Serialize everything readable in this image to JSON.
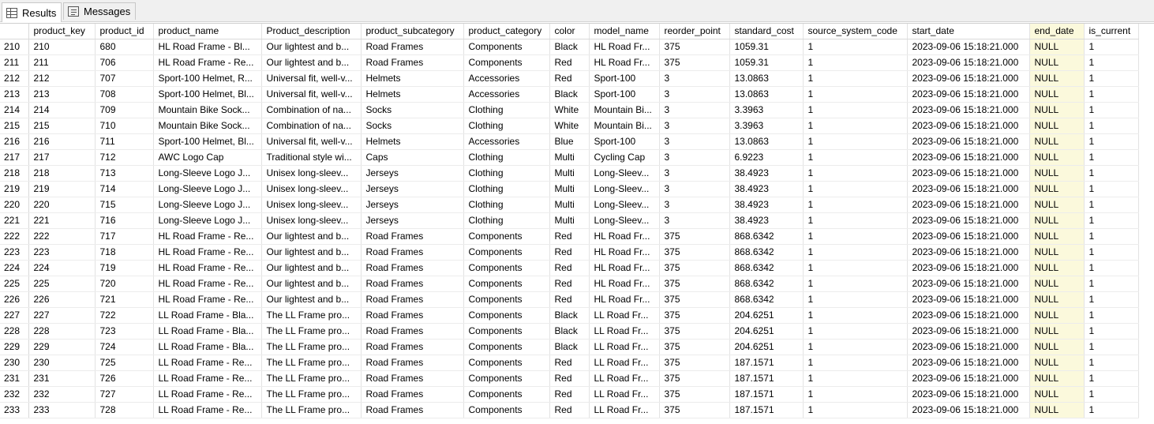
{
  "tabs": [
    {
      "label": "Results",
      "icon": "grid-icon"
    },
    {
      "label": "Messages",
      "icon": "messages-icon"
    }
  ],
  "columns": [
    "product_key",
    "product_id",
    "product_name",
    "Product_description",
    "product_subcategory",
    "product_category",
    "color",
    "model_name",
    "reorder_point",
    "standard_cost",
    "source_system_code",
    "start_date",
    "end_date",
    "is_current"
  ],
  "rows": [
    [
      "210",
      "210",
      "680",
      "HL Road Frame - Bl...",
      "Our lightest and b...",
      "Road Frames",
      "Components",
      "Black",
      "HL Road Fr...",
      "375",
      "1059.31",
      "1",
      "2023-09-06 15:18:21.000",
      "NULL",
      "1"
    ],
    [
      "211",
      "211",
      "706",
      "HL Road Frame - Re...",
      "Our lightest and b...",
      "Road Frames",
      "Components",
      "Red",
      "HL Road Fr...",
      "375",
      "1059.31",
      "1",
      "2023-09-06 15:18:21.000",
      "NULL",
      "1"
    ],
    [
      "212",
      "212",
      "707",
      "Sport-100 Helmet, R...",
      "Universal fit, well-v...",
      "Helmets",
      "Accessories",
      "Red",
      "Sport-100",
      "3",
      "13.0863",
      "1",
      "2023-09-06 15:18:21.000",
      "NULL",
      "1"
    ],
    [
      "213",
      "213",
      "708",
      "Sport-100 Helmet, Bl...",
      "Universal fit, well-v...",
      "Helmets",
      "Accessories",
      "Black",
      "Sport-100",
      "3",
      "13.0863",
      "1",
      "2023-09-06 15:18:21.000",
      "NULL",
      "1"
    ],
    [
      "214",
      "214",
      "709",
      "Mountain Bike Sock...",
      "Combination of na...",
      "Socks",
      "Clothing",
      "White",
      "Mountain Bi...",
      "3",
      "3.3963",
      "1",
      "2023-09-06 15:18:21.000",
      "NULL",
      "1"
    ],
    [
      "215",
      "215",
      "710",
      "Mountain Bike Sock...",
      "Combination of na...",
      "Socks",
      "Clothing",
      "White",
      "Mountain Bi...",
      "3",
      "3.3963",
      "1",
      "2023-09-06 15:18:21.000",
      "NULL",
      "1"
    ],
    [
      "216",
      "216",
      "711",
      "Sport-100 Helmet, Bl...",
      "Universal fit, well-v...",
      "Helmets",
      "Accessories",
      "Blue",
      "Sport-100",
      "3",
      "13.0863",
      "1",
      "2023-09-06 15:18:21.000",
      "NULL",
      "1"
    ],
    [
      "217",
      "217",
      "712",
      "AWC Logo Cap",
      "Traditional style wi...",
      "Caps",
      "Clothing",
      "Multi",
      "Cycling Cap",
      "3",
      "6.9223",
      "1",
      "2023-09-06 15:18:21.000",
      "NULL",
      "1"
    ],
    [
      "218",
      "218",
      "713",
      "Long-Sleeve Logo J...",
      "Unisex long-sleev...",
      "Jerseys",
      "Clothing",
      "Multi",
      "Long-Sleev...",
      "3",
      "38.4923",
      "1",
      "2023-09-06 15:18:21.000",
      "NULL",
      "1"
    ],
    [
      "219",
      "219",
      "714",
      "Long-Sleeve Logo J...",
      "Unisex long-sleev...",
      "Jerseys",
      "Clothing",
      "Multi",
      "Long-Sleev...",
      "3",
      "38.4923",
      "1",
      "2023-09-06 15:18:21.000",
      "NULL",
      "1"
    ],
    [
      "220",
      "220",
      "715",
      "Long-Sleeve Logo J...",
      "Unisex long-sleev...",
      "Jerseys",
      "Clothing",
      "Multi",
      "Long-Sleev...",
      "3",
      "38.4923",
      "1",
      "2023-09-06 15:18:21.000",
      "NULL",
      "1"
    ],
    [
      "221",
      "221",
      "716",
      "Long-Sleeve Logo J...",
      "Unisex long-sleev...",
      "Jerseys",
      "Clothing",
      "Multi",
      "Long-Sleev...",
      "3",
      "38.4923",
      "1",
      "2023-09-06 15:18:21.000",
      "NULL",
      "1"
    ],
    [
      "222",
      "222",
      "717",
      "HL Road Frame - Re...",
      "Our lightest and b...",
      "Road Frames",
      "Components",
      "Red",
      "HL Road Fr...",
      "375",
      "868.6342",
      "1",
      "2023-09-06 15:18:21.000",
      "NULL",
      "1"
    ],
    [
      "223",
      "223",
      "718",
      "HL Road Frame - Re...",
      "Our lightest and b...",
      "Road Frames",
      "Components",
      "Red",
      "HL Road Fr...",
      "375",
      "868.6342",
      "1",
      "2023-09-06 15:18:21.000",
      "NULL",
      "1"
    ],
    [
      "224",
      "224",
      "719",
      "HL Road Frame - Re...",
      "Our lightest and b...",
      "Road Frames",
      "Components",
      "Red",
      "HL Road Fr...",
      "375",
      "868.6342",
      "1",
      "2023-09-06 15:18:21.000",
      "NULL",
      "1"
    ],
    [
      "225",
      "225",
      "720",
      "HL Road Frame - Re...",
      "Our lightest and b...",
      "Road Frames",
      "Components",
      "Red",
      "HL Road Fr...",
      "375",
      "868.6342",
      "1",
      "2023-09-06 15:18:21.000",
      "NULL",
      "1"
    ],
    [
      "226",
      "226",
      "721",
      "HL Road Frame - Re...",
      "Our lightest and b...",
      "Road Frames",
      "Components",
      "Red",
      "HL Road Fr...",
      "375",
      "868.6342",
      "1",
      "2023-09-06 15:18:21.000",
      "NULL",
      "1"
    ],
    [
      "227",
      "227",
      "722",
      "LL Road Frame - Bla...",
      "The LL Frame pro...",
      "Road Frames",
      "Components",
      "Black",
      "LL Road Fr...",
      "375",
      "204.6251",
      "1",
      "2023-09-06 15:18:21.000",
      "NULL",
      "1"
    ],
    [
      "228",
      "228",
      "723",
      "LL Road Frame - Bla...",
      "The LL Frame pro...",
      "Road Frames",
      "Components",
      "Black",
      "LL Road Fr...",
      "375",
      "204.6251",
      "1",
      "2023-09-06 15:18:21.000",
      "NULL",
      "1"
    ],
    [
      "229",
      "229",
      "724",
      "LL Road Frame - Bla...",
      "The LL Frame pro...",
      "Road Frames",
      "Components",
      "Black",
      "LL Road Fr...",
      "375",
      "204.6251",
      "1",
      "2023-09-06 15:18:21.000",
      "NULL",
      "1"
    ],
    [
      "230",
      "230",
      "725",
      "LL Road Frame - Re...",
      "The LL Frame pro...",
      "Road Frames",
      "Components",
      "Red",
      "LL Road Fr...",
      "375",
      "187.1571",
      "1",
      "2023-09-06 15:18:21.000",
      "NULL",
      "1"
    ],
    [
      "231",
      "231",
      "726",
      "LL Road Frame - Re...",
      "The LL Frame pro...",
      "Road Frames",
      "Components",
      "Red",
      "LL Road Fr...",
      "375",
      "187.1571",
      "1",
      "2023-09-06 15:18:21.000",
      "NULL",
      "1"
    ],
    [
      "232",
      "232",
      "727",
      "LL Road Frame - Re...",
      "The LL Frame pro...",
      "Road Frames",
      "Components",
      "Red",
      "LL Road Fr...",
      "375",
      "187.1571",
      "1",
      "2023-09-06 15:18:21.000",
      "NULL",
      "1"
    ],
    [
      "233",
      "233",
      "728",
      "LL Road Frame - Re...",
      "The LL Frame pro...",
      "Road Frames",
      "Components",
      "Red",
      "LL Road Fr...",
      "375",
      "187.1571",
      "1",
      "2023-09-06 15:18:21.000",
      "NULL",
      "1"
    ]
  ],
  "highlight_color": "#fbf9dc"
}
